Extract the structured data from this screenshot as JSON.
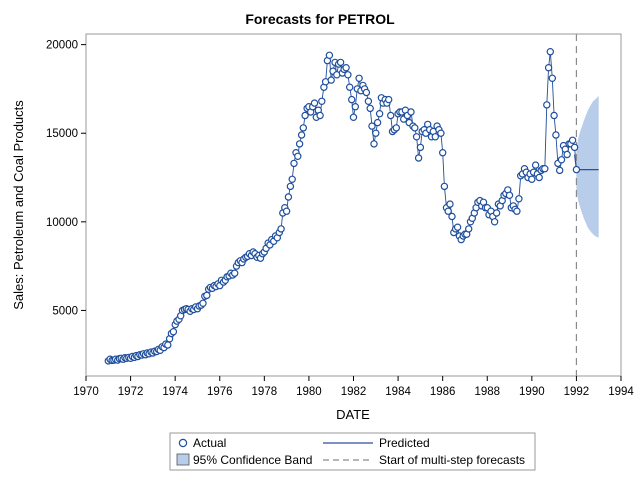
{
  "chart_data": {
    "type": "line",
    "title": "Forecasts for PETROL",
    "xlabel": "DATE",
    "ylabel": "Sales: Petroleum and Coal Products",
    "xlim": [
      1970,
      1994
    ],
    "ylim": [
      1300,
      20600
    ],
    "x_ticks": [
      "1970",
      "1972",
      "1974",
      "1976",
      "1978",
      "1980",
      "1982",
      "1984",
      "1986",
      "1988",
      "1990",
      "1992",
      "1994"
    ],
    "x_tick_values": [
      1970,
      1972,
      1974,
      1976,
      1978,
      1980,
      1982,
      1984,
      1986,
      1988,
      1990,
      1992,
      1994
    ],
    "y_ticks": [
      "5000",
      "10000",
      "15000",
      "20000"
    ],
    "y_tick_values": [
      5000,
      10000,
      15000,
      20000
    ],
    "grid": false,
    "legend_position": "bottom",
    "forecast_start": 1992.0,
    "colors": {
      "actual": "#1f4e9c",
      "predicted": "#2b4f9e",
      "band": "#b8cdea",
      "start_line": "#8a8a8a"
    },
    "legend": {
      "actual": "Actual",
      "predicted": "Predicted",
      "band": "95% Confidence Band",
      "start": "Start of multi-step forecasts"
    },
    "actual": {
      "name": "Actual",
      "points": [
        [
          1971.0,
          2150
        ],
        [
          1971.08,
          2250
        ],
        [
          1971.17,
          2180
        ],
        [
          1971.25,
          2200
        ],
        [
          1971.33,
          2250
        ],
        [
          1971.42,
          2200
        ],
        [
          1971.5,
          2280
        ],
        [
          1971.58,
          2300
        ],
        [
          1971.67,
          2250
        ],
        [
          1971.75,
          2330
        ],
        [
          1971.83,
          2300
        ],
        [
          1971.92,
          2350
        ],
        [
          1972.0,
          2300
        ],
        [
          1972.08,
          2400
        ],
        [
          1972.17,
          2350
        ],
        [
          1972.25,
          2450
        ],
        [
          1972.33,
          2400
        ],
        [
          1972.42,
          2500
        ],
        [
          1972.5,
          2480
        ],
        [
          1972.58,
          2550
        ],
        [
          1972.67,
          2500
        ],
        [
          1972.75,
          2600
        ],
        [
          1972.83,
          2550
        ],
        [
          1972.92,
          2650
        ],
        [
          1973.0,
          2600
        ],
        [
          1973.08,
          2700
        ],
        [
          1973.17,
          2680
        ],
        [
          1973.25,
          2800
        ],
        [
          1973.33,
          2750
        ],
        [
          1973.42,
          2950
        ],
        [
          1973.5,
          2900
        ],
        [
          1973.58,
          3100
        ],
        [
          1973.67,
          3050
        ],
        [
          1973.75,
          3400
        ],
        [
          1973.83,
          3700
        ],
        [
          1973.92,
          3800
        ],
        [
          1974.0,
          4200
        ],
        [
          1974.08,
          4400
        ],
        [
          1974.17,
          4500
        ],
        [
          1974.25,
          4700
        ],
        [
          1974.33,
          5000
        ],
        [
          1974.42,
          5050
        ],
        [
          1974.5,
          5100
        ],
        [
          1974.58,
          5050
        ],
        [
          1974.67,
          4950
        ],
        [
          1974.75,
          5100
        ],
        [
          1974.83,
          5050
        ],
        [
          1974.92,
          5200
        ],
        [
          1975.0,
          5100
        ],
        [
          1975.08,
          5250
        ],
        [
          1975.17,
          5300
        ],
        [
          1975.25,
          5400
        ],
        [
          1975.33,
          5800
        ],
        [
          1975.42,
          5850
        ],
        [
          1975.5,
          6200
        ],
        [
          1975.58,
          6300
        ],
        [
          1975.67,
          6250
        ],
        [
          1975.75,
          6400
        ],
        [
          1975.83,
          6350
        ],
        [
          1975.92,
          6500
        ],
        [
          1976.0,
          6400
        ],
        [
          1976.08,
          6700
        ],
        [
          1976.17,
          6600
        ],
        [
          1976.25,
          6700
        ],
        [
          1976.33,
          6900
        ],
        [
          1976.42,
          6950
        ],
        [
          1976.5,
          7100
        ],
        [
          1976.58,
          7000
        ],
        [
          1976.67,
          7100
        ],
        [
          1976.75,
          7500
        ],
        [
          1976.83,
          7700
        ],
        [
          1976.92,
          7800
        ],
        [
          1977.0,
          7700
        ],
        [
          1977.08,
          7900
        ],
        [
          1977.17,
          8000
        ],
        [
          1977.25,
          8050
        ],
        [
          1977.33,
          8200
        ],
        [
          1977.42,
          8100
        ],
        [
          1977.5,
          8300
        ],
        [
          1977.58,
          8200
        ],
        [
          1977.67,
          8000
        ],
        [
          1977.75,
          8100
        ],
        [
          1977.83,
          7950
        ],
        [
          1977.92,
          8200
        ],
        [
          1978.0,
          8300
        ],
        [
          1978.08,
          8500
        ],
        [
          1978.17,
          8800
        ],
        [
          1978.25,
          8700
        ],
        [
          1978.33,
          9000
        ],
        [
          1978.42,
          8900
        ],
        [
          1978.5,
          9200
        ],
        [
          1978.58,
          9100
        ],
        [
          1978.67,
          9400
        ],
        [
          1978.75,
          9600
        ],
        [
          1978.83,
          10500
        ],
        [
          1978.92,
          10800
        ],
        [
          1979.0,
          10600
        ],
        [
          1979.08,
          11400
        ],
        [
          1979.17,
          12000
        ],
        [
          1979.25,
          12400
        ],
        [
          1979.33,
          13300
        ],
        [
          1979.42,
          13900
        ],
        [
          1979.5,
          13700
        ],
        [
          1979.58,
          14400
        ],
        [
          1979.67,
          14900
        ],
        [
          1979.75,
          15300
        ],
        [
          1979.83,
          16000
        ],
        [
          1979.92,
          16400
        ],
        [
          1980.0,
          16500
        ],
        [
          1980.08,
          16200
        ],
        [
          1980.17,
          16500
        ],
        [
          1980.25,
          16700
        ],
        [
          1980.33,
          15900
        ],
        [
          1980.42,
          16300
        ],
        [
          1980.5,
          16000
        ],
        [
          1980.58,
          16800
        ],
        [
          1980.67,
          17600
        ],
        [
          1980.75,
          17900
        ],
        [
          1980.83,
          19100
        ],
        [
          1980.92,
          19400
        ],
        [
          1981.0,
          18000
        ],
        [
          1981.08,
          18500
        ],
        [
          1981.17,
          19000
        ],
        [
          1981.25,
          18300
        ],
        [
          1981.33,
          18900
        ],
        [
          1981.42,
          19000
        ],
        [
          1981.5,
          18400
        ],
        [
          1981.58,
          18600
        ],
        [
          1981.67,
          18700
        ],
        [
          1981.75,
          18300
        ],
        [
          1981.83,
          17600
        ],
        [
          1981.92,
          16900
        ],
        [
          1982.0,
          15900
        ],
        [
          1982.08,
          16500
        ],
        [
          1982.17,
          17500
        ],
        [
          1982.25,
          18100
        ],
        [
          1982.33,
          17400
        ],
        [
          1982.42,
          17700
        ],
        [
          1982.5,
          17500
        ],
        [
          1982.58,
          17300
        ],
        [
          1982.67,
          16800
        ],
        [
          1982.75,
          16400
        ],
        [
          1982.83,
          15400
        ],
        [
          1982.92,
          14400
        ],
        [
          1983.0,
          15000
        ],
        [
          1983.08,
          15600
        ],
        [
          1983.17,
          16100
        ],
        [
          1983.25,
          17000
        ],
        [
          1983.33,
          16700
        ],
        [
          1983.42,
          16900
        ],
        [
          1983.5,
          16700
        ],
        [
          1983.58,
          16900
        ],
        [
          1983.67,
          16000
        ],
        [
          1983.75,
          15100
        ],
        [
          1983.83,
          15200
        ],
        [
          1983.92,
          15300
        ],
        [
          1984.0,
          16100
        ],
        [
          1984.08,
          16200
        ],
        [
          1984.17,
          16200
        ],
        [
          1984.25,
          15800
        ],
        [
          1984.33,
          16300
        ],
        [
          1984.42,
          16000
        ],
        [
          1984.5,
          15600
        ],
        [
          1984.58,
          16200
        ],
        [
          1984.67,
          15400
        ],
        [
          1984.75,
          15300
        ],
        [
          1984.83,
          14800
        ],
        [
          1984.92,
          13600
        ],
        [
          1985.0,
          14200
        ],
        [
          1985.08,
          15100
        ],
        [
          1985.17,
          15200
        ],
        [
          1985.25,
          15000
        ],
        [
          1985.33,
          15500
        ],
        [
          1985.42,
          15200
        ],
        [
          1985.5,
          14800
        ],
        [
          1985.58,
          15100
        ],
        [
          1985.67,
          14800
        ],
        [
          1985.75,
          15400
        ],
        [
          1985.83,
          15200
        ],
        [
          1985.92,
          15000
        ],
        [
          1986.0,
          13900
        ],
        [
          1986.08,
          12000
        ],
        [
          1986.17,
          10800
        ],
        [
          1986.25,
          10600
        ],
        [
          1986.33,
          11000
        ],
        [
          1986.42,
          10300
        ],
        [
          1986.5,
          9400
        ],
        [
          1986.58,
          9600
        ],
        [
          1986.67,
          9700
        ],
        [
          1986.75,
          9200
        ],
        [
          1986.83,
          9000
        ],
        [
          1986.92,
          9200
        ],
        [
          1987.0,
          9300
        ],
        [
          1987.08,
          9300
        ],
        [
          1987.17,
          9600
        ],
        [
          1987.25,
          10000
        ],
        [
          1987.33,
          10200
        ],
        [
          1987.42,
          10500
        ],
        [
          1987.5,
          10800
        ],
        [
          1987.58,
          11100
        ],
        [
          1987.67,
          11200
        ],
        [
          1987.75,
          10900
        ],
        [
          1987.83,
          11100
        ],
        [
          1987.92,
          10800
        ],
        [
          1988.0,
          10800
        ],
        [
          1988.08,
          10400
        ],
        [
          1988.17,
          10600
        ],
        [
          1988.25,
          10300
        ],
        [
          1988.33,
          10000
        ],
        [
          1988.42,
          10500
        ],
        [
          1988.5,
          11000
        ],
        [
          1988.58,
          10900
        ],
        [
          1988.67,
          11200
        ],
        [
          1988.75,
          11500
        ],
        [
          1988.83,
          11600
        ],
        [
          1988.92,
          11800
        ],
        [
          1989.0,
          11500
        ],
        [
          1989.08,
          10800
        ],
        [
          1989.17,
          10900
        ],
        [
          1989.25,
          10700
        ],
        [
          1989.33,
          10600
        ],
        [
          1989.42,
          11300
        ],
        [
          1989.5,
          12600
        ],
        [
          1989.58,
          12700
        ],
        [
          1989.67,
          13000
        ],
        [
          1989.75,
          12800
        ],
        [
          1989.83,
          12500
        ],
        [
          1989.92,
          12700
        ],
        [
          1990.0,
          12400
        ],
        [
          1990.08,
          12800
        ],
        [
          1990.17,
          13200
        ],
        [
          1990.25,
          12700
        ],
        [
          1990.33,
          12500
        ],
        [
          1990.42,
          12900
        ],
        [
          1990.5,
          13000
        ],
        [
          1990.58,
          13000
        ],
        [
          1990.67,
          16600
        ],
        [
          1990.75,
          18700
        ],
        [
          1990.83,
          19600
        ],
        [
          1990.92,
          18100
        ],
        [
          1991.0,
          16000
        ],
        [
          1991.08,
          14900
        ],
        [
          1991.17,
          13300
        ],
        [
          1991.25,
          12900
        ],
        [
          1991.33,
          13500
        ],
        [
          1991.42,
          14300
        ],
        [
          1991.5,
          14100
        ],
        [
          1991.58,
          13800
        ],
        [
          1991.67,
          14400
        ],
        [
          1991.75,
          14400
        ],
        [
          1991.83,
          14600
        ],
        [
          1991.92,
          14200
        ],
        [
          1992.0,
          12950
        ]
      ]
    },
    "predicted": {
      "name": "Predicted",
      "points": [
        [
          1991.92,
          13800
        ],
        [
          1992.0,
          12950
        ],
        [
          1993.0,
          12950
        ]
      ]
    },
    "confidence_band": {
      "name": "95% Confidence Band",
      "x": [
        1992.0,
        1992.08,
        1992.17,
        1992.25,
        1992.33,
        1992.42,
        1992.5,
        1992.58,
        1992.67,
        1992.75,
        1992.83,
        1992.92,
        1993.0
      ],
      "upper": [
        14150,
        14700,
        15100,
        15400,
        15700,
        16000,
        16250,
        16450,
        16650,
        16800,
        16900,
        17000,
        17100
      ],
      "lower": [
        11750,
        11200,
        10800,
        10500,
        10200,
        9950,
        9700,
        9550,
        9400,
        9300,
        9200,
        9150,
        9100
      ]
    }
  }
}
